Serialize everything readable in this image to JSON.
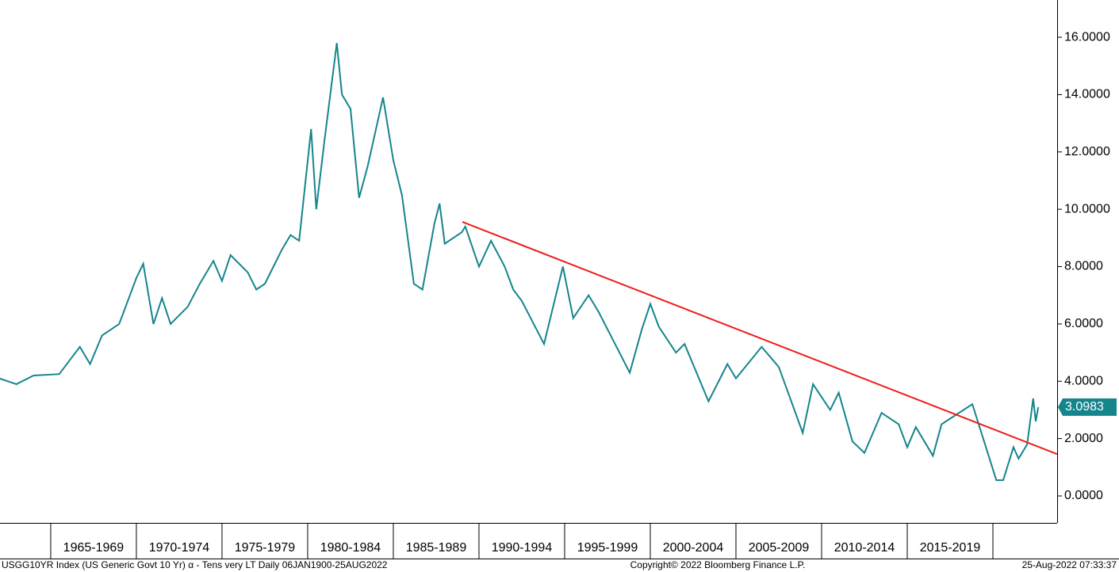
{
  "chart_data": {
    "type": "line",
    "series": [
      {
        "name": "USGG10YR Index",
        "color": "#15858c",
        "x": [
          1962.0,
          1963.0,
          1964.0,
          1965.5,
          1966.7,
          1967.3,
          1968.0,
          1969.0,
          1970.0,
          1970.4,
          1971.0,
          1971.5,
          1972.0,
          1973.0,
          1973.7,
          1974.5,
          1975.0,
          1975.5,
          1976.5,
          1977.0,
          1977.5,
          1978.0,
          1978.5,
          1979.0,
          1979.5,
          1980.2,
          1980.5,
          1981.0,
          1981.7,
          1982.0,
          1982.5,
          1983.0,
          1983.5,
          1984.4,
          1985.0,
          1985.5,
          1986.2,
          1986.7,
          1987.4,
          1987.7,
          1988.0,
          1989.0,
          1989.2,
          1990.0,
          1990.7,
          1991.5,
          1992.0,
          1992.5,
          1993.8,
          1994.9,
          1995.5,
          1996.4,
          1997.0,
          1998.8,
          1999.5,
          2000.0,
          2000.5,
          2001.5,
          2002.0,
          2003.4,
          2004.5,
          2005.0,
          2006.5,
          2007.5,
          2008.9,
          2009.5,
          2010.5,
          2011.0,
          2011.8,
          2012.5,
          2013.5,
          2014.5,
          2015.0,
          2015.5,
          2016.5,
          2017.0,
          2018.8,
          2019.7,
          2020.2,
          2020.6,
          2021.2,
          2021.5,
          2022.0,
          2022.35,
          2022.5,
          2022.65
        ],
        "values": [
          4.1,
          3.9,
          4.2,
          4.25,
          5.2,
          4.6,
          5.6,
          6.0,
          7.6,
          8.1,
          6.0,
          6.9,
          6.0,
          6.6,
          7.4,
          8.2,
          7.5,
          8.4,
          7.8,
          7.2,
          7.4,
          8.0,
          8.6,
          9.1,
          8.9,
          12.8,
          10.0,
          12.5,
          15.8,
          14.0,
          13.5,
          10.4,
          11.5,
          13.9,
          11.7,
          10.5,
          7.4,
          7.2,
          9.5,
          10.2,
          8.8,
          9.2,
          9.4,
          8.0,
          8.9,
          8.0,
          7.2,
          6.8,
          5.3,
          8.0,
          6.2,
          7.0,
          6.4,
          4.3,
          5.8,
          6.7,
          5.9,
          5.0,
          5.3,
          3.3,
          4.6,
          4.1,
          5.2,
          4.5,
          2.2,
          3.9,
          3.0,
          3.6,
          1.9,
          1.5,
          2.9,
          2.5,
          1.7,
          2.4,
          1.4,
          2.5,
          3.2,
          1.5,
          0.55,
          0.55,
          1.7,
          1.3,
          1.8,
          3.4,
          2.6,
          3.0983
        ]
      }
    ],
    "trendline": {
      "color": "#ee1c1c",
      "x": [
        1989.03,
        2023.75
      ],
      "values": [
        9.56,
        1.46
      ]
    },
    "xlim": [
      1962.04,
      2023.75
    ],
    "xticks": [
      1965,
      1970,
      1975,
      1980,
      1985,
      1990,
      1995,
      2000,
      2005,
      2010,
      2015,
      2020
    ],
    "period_labels": [
      "1965-1969",
      "1970-1974",
      "1975-1979",
      "1980-1984",
      "1985-1989",
      "1990-1994",
      "1995-1999",
      "2000-2004",
      "2005-2009",
      "2010-2014",
      "2015-2019"
    ],
    "ylim": [
      -0.94,
      17.3
    ],
    "yticks": [
      {
        "value": 0,
        "label": "0.0000"
      },
      {
        "value": 2,
        "label": "2.0000"
      },
      {
        "value": 4,
        "label": "4.0000"
      },
      {
        "value": 6,
        "label": "6.0000"
      },
      {
        "value": 8,
        "label": "8.0000"
      },
      {
        "value": 10,
        "label": "10.0000"
      },
      {
        "value": 12,
        "label": "12.0000"
      },
      {
        "value": 14,
        "label": "14.0000"
      },
      {
        "value": 16,
        "label": "16.0000"
      }
    ],
    "footer_left": "USGG10YR Index (US Generic Govt 10 Yr) α - Tens very LT  Daily 06JAN1900-25AUG2022",
    "footer_center": "Copyright© 2022 Bloomberg Finance L.P.",
    "footer_right": "25-Aug-2022 07:33:37"
  }
}
